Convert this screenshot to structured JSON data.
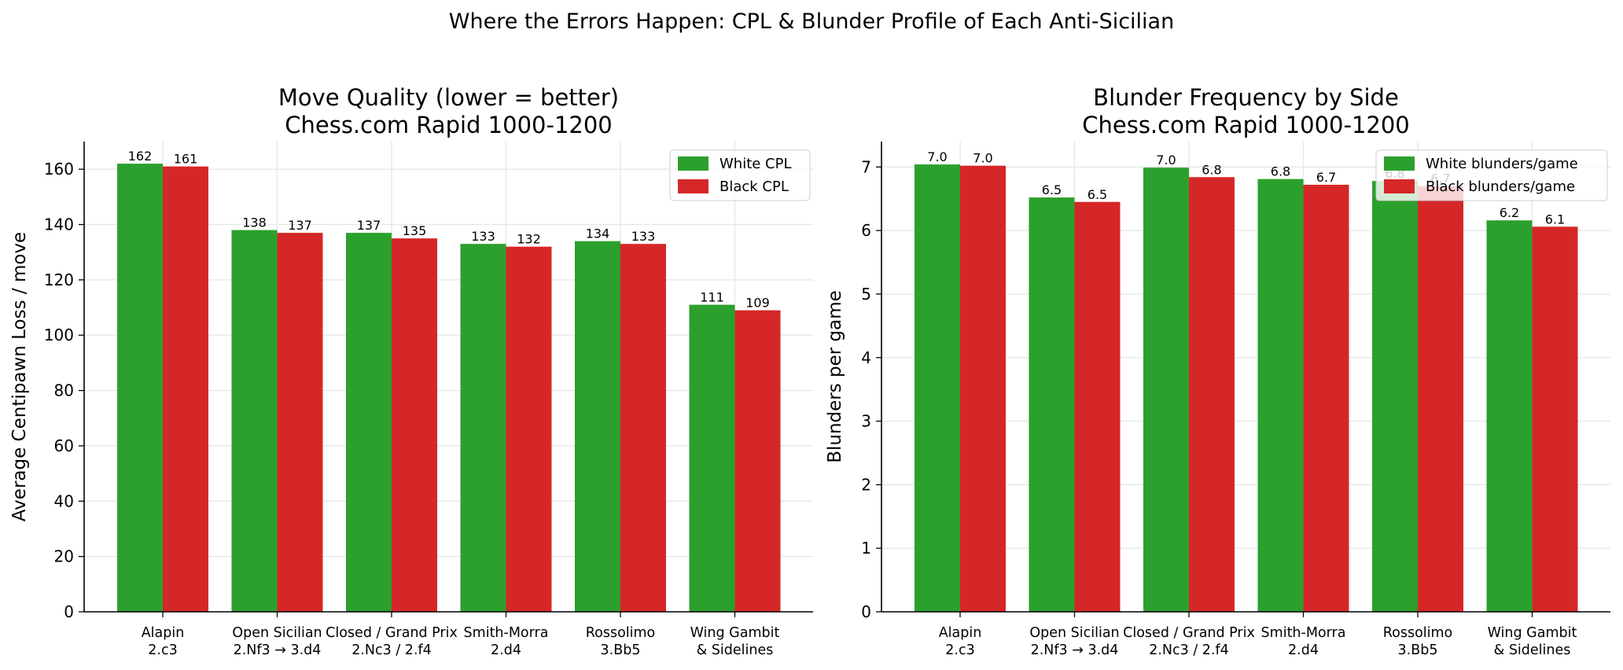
{
  "suptitle": "Where the Errors Happen: CPL & Blunder Profile of Each Anti-Sicilian",
  "colors": {
    "white_series": "#2ca02c",
    "black_series": "#d62728",
    "grid": "#e6e6e6",
    "axis": "#000000"
  },
  "chart_data": [
    {
      "type": "bar",
      "title_line1": "Move Quality (lower = better)",
      "title_line2": "Chess.com Rapid 1000-1200",
      "xlabel": "",
      "ylabel": "Average Centipawn Loss / move",
      "ylim": [
        0,
        170
      ],
      "yticks": [
        0,
        20,
        40,
        60,
        80,
        100,
        120,
        140,
        160
      ],
      "grid": true,
      "legend_position": "top-right",
      "categories": [
        [
          "Alapin",
          "2.c3"
        ],
        [
          "Open Sicilian",
          "2.Nf3 → 3.d4"
        ],
        [
          "Closed / Grand Prix",
          "2.Nc3 / 2.f4"
        ],
        [
          "Smith-Morra",
          "2.d4"
        ],
        [
          "Rossolimo",
          "3.Bb5"
        ],
        [
          "Wing Gambit",
          "& Sidelines"
        ]
      ],
      "series": [
        {
          "name": "White CPL",
          "color": "#2ca02c",
          "values": [
            162,
            138,
            137,
            133,
            134,
            111
          ],
          "labels": [
            "162",
            "138",
            "137",
            "133",
            "134",
            "111"
          ]
        },
        {
          "name": "Black CPL",
          "color": "#d62728",
          "values": [
            161,
            137,
            135,
            132,
            133,
            109
          ],
          "labels": [
            "161",
            "137",
            "135",
            "132",
            "133",
            "109"
          ]
        }
      ]
    },
    {
      "type": "bar",
      "title_line1": "Blunder Frequency by Side",
      "title_line2": "Chess.com Rapid 1000-1200",
      "xlabel": "",
      "ylabel": "Blunders per game",
      "ylim": [
        0,
        7.4
      ],
      "yticks": [
        0,
        1,
        2,
        3,
        4,
        5,
        6,
        7
      ],
      "grid": true,
      "legend_position": "top-right",
      "categories": [
        [
          "Alapin",
          "2.c3"
        ],
        [
          "Open Sicilian",
          "2.Nf3 → 3.d4"
        ],
        [
          "Closed / Grand Prix",
          "2.Nc3 / 2.f4"
        ],
        [
          "Smith-Morra",
          "2.d4"
        ],
        [
          "Rossolimo",
          "3.Bb5"
        ],
        [
          "Wing Gambit",
          "& Sidelines"
        ]
      ],
      "series": [
        {
          "name": "White blunders/game",
          "color": "#2ca02c",
          "values": [
            7.04,
            6.52,
            6.99,
            6.81,
            6.78,
            6.16
          ],
          "labels": [
            "7.0",
            "6.5",
            "7.0",
            "6.8",
            "6.8",
            "6.2"
          ]
        },
        {
          "name": "Black blunders/game",
          "color": "#d62728",
          "values": [
            7.02,
            6.45,
            6.84,
            6.72,
            6.7,
            6.06
          ],
          "labels": [
            "7.0",
            "6.5",
            "6.8",
            "6.7",
            "6.7",
            "6.1"
          ]
        }
      ]
    }
  ]
}
